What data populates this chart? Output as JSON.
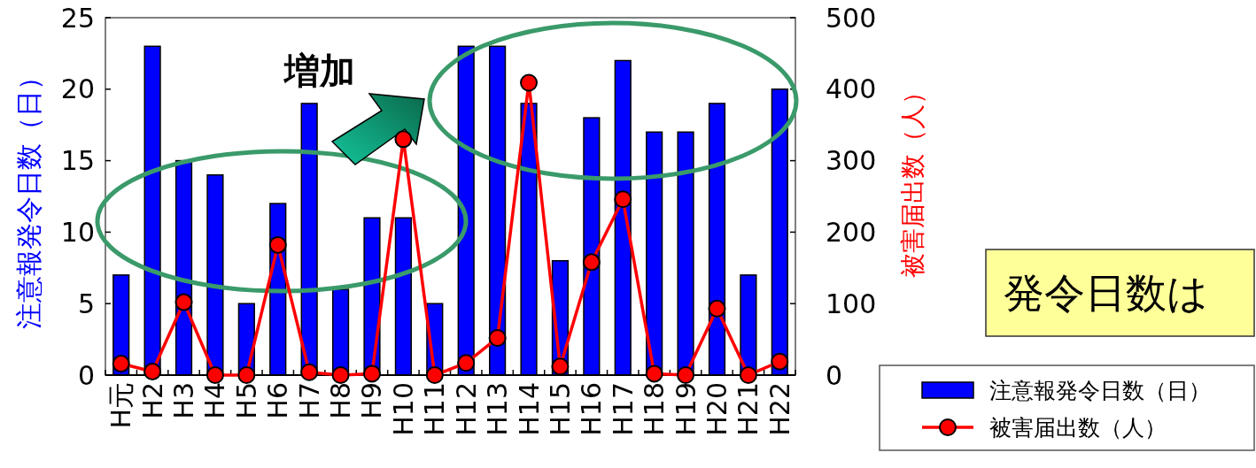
{
  "chart_data": {
    "type": "bar",
    "categories": [
      "H元",
      "H2",
      "H3",
      "H4",
      "H5",
      "H6",
      "H7",
      "H8",
      "H9",
      "H10",
      "H11",
      "H12",
      "H13",
      "H14",
      "H15",
      "H16",
      "H17",
      "H18",
      "H19",
      "H20",
      "H21",
      "H22"
    ],
    "series": [
      {
        "name": "注意報発令日数（日）",
        "color": "#0000ff",
        "values": [
          7,
          23,
          15,
          14,
          5,
          12,
          19,
          6,
          11,
          11,
          5,
          23,
          23,
          19,
          8,
          18,
          22,
          17,
          17,
          19,
          7,
          20
        ]
      },
      {
        "name": "被害届出数（人）",
        "type": "line",
        "axis": "y2",
        "color": "#ff0000",
        "values": [
          16,
          5,
          102,
          0,
          0,
          182,
          4,
          0,
          2,
          330,
          0,
          17,
          52,
          409,
          12,
          158,
          246,
          2,
          0,
          93,
          0,
          19
        ]
      }
    ],
    "ylabel": "注意報発令日数（日）",
    "y2label": "被害届出数（人）",
    "ylim": [
      0,
      25
    ],
    "yticks": [
      0,
      5,
      10,
      15,
      20,
      25
    ],
    "y2lim": [
      0,
      500
    ],
    "y2ticks": [
      0,
      100,
      200,
      300,
      400,
      500
    ],
    "marker": "circle",
    "legend": "bottom right",
    "grid": false,
    "annotations": [
      "増加",
      "発令日数は"
    ]
  }
}
